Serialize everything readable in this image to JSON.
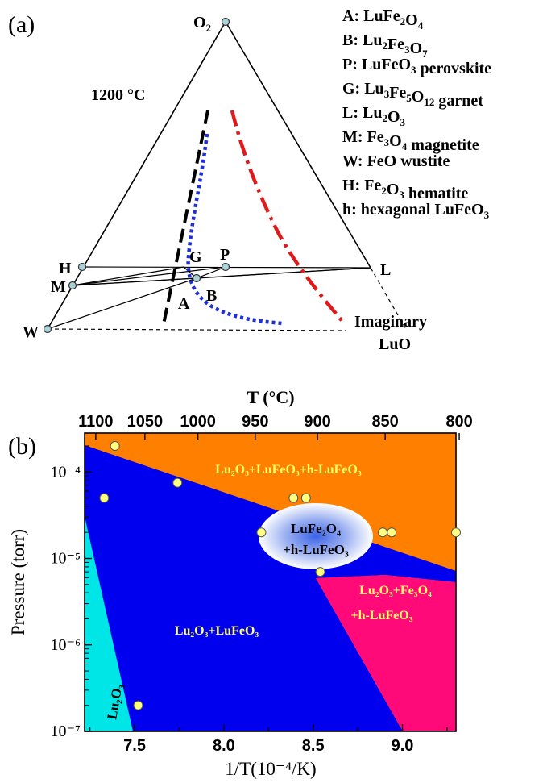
{
  "panel_a": {
    "panel_label": "(a)",
    "temperature_label": "1200 °C",
    "vertices": {
      "O2": "O",
      "O2_sub": "2",
      "H": "H",
      "M": "M",
      "W": "W",
      "G": "G",
      "P": "P",
      "L": "L",
      "A": "A",
      "B": "B",
      "imaginary_line1": "Imaginary",
      "imaginary_line2": "LuO"
    },
    "legend": [
      {
        "key": "A:",
        "parts": [
          [
            "Lu",
            ""
          ],
          [
            "Fe",
            "2"
          ],
          [
            "O",
            "4"
          ]
        ],
        "suffix": ""
      },
      {
        "key": "B:",
        "parts": [
          [
            "Lu",
            "2"
          ],
          [
            "Fe",
            "3"
          ],
          [
            "O",
            "7"
          ]
        ],
        "suffix": ""
      },
      {
        "key": "P:",
        "parts": [
          [
            "Lu",
            ""
          ],
          [
            "Fe",
            ""
          ],
          [
            "O",
            "3"
          ]
        ],
        "suffix": " perovskite"
      },
      {
        "key": "G:",
        "parts": [
          [
            "Lu",
            "3"
          ],
          [
            "Fe",
            "5"
          ],
          [
            "O",
            "12"
          ]
        ],
        "suffix": " garnet"
      },
      {
        "key": "L:",
        "parts": [
          [
            "Lu",
            "2"
          ],
          [
            "O",
            "3"
          ]
        ],
        "suffix": ""
      },
      {
        "key": "M:",
        "parts": [
          [
            "Fe",
            "3"
          ],
          [
            "O",
            "4"
          ]
        ],
        "suffix": " magnetite"
      },
      {
        "key": "W:",
        "parts": [
          [
            "FeO",
            ""
          ]
        ],
        "suffix": " wustite"
      },
      {
        "key": "H:",
        "parts": [
          [
            "Fe",
            "2"
          ],
          [
            "O",
            "3"
          ]
        ],
        "suffix": " hematite"
      },
      {
        "key": "h:",
        "parts": [
          [
            "hexagonal LuFeO",
            "3"
          ]
        ],
        "suffix": ""
      }
    ],
    "colors": {
      "black_dash": "#000000",
      "blue_dot": "#1f2fd6",
      "red_dashdot": "#e0191b",
      "marker": "#a9d3d6"
    }
  },
  "chart_data": {
    "type": "area",
    "panel_label": "(b)",
    "xlabel": "1/T(10⁻⁴/K)",
    "x2label": "T (°C)",
    "ylabel": "Pressure (torr)",
    "xlim": [
      7.22,
      9.3
    ],
    "ylim_log10": [
      -7,
      -3.55
    ],
    "y_scale": "log",
    "xticks": [
      7.5,
      8.0,
      8.5,
      9.0
    ],
    "xtick_labels": [
      "7.5",
      "8.0",
      "8.5",
      "9.0"
    ],
    "yticks_log10": [
      -7,
      -6,
      -5,
      -4
    ],
    "ytick_labels": [
      "10⁻⁷",
      "10⁻⁶",
      "10⁻⁵",
      "10⁻⁴"
    ],
    "top_ticks_C": [
      1100,
      1050,
      1000,
      950,
      900,
      850,
      800
    ],
    "top_tick_labels": [
      "1100",
      "1050",
      "1000",
      "950",
      "900",
      "850",
      "800"
    ],
    "regions": [
      {
        "label": "Lu₂O₃+LuFeO₃+h-LuFeO₃",
        "color": "#ff7f00"
      },
      {
        "label": "Lu₂O₃+LuFeO₃",
        "color": "#0000ee"
      },
      {
        "label": "Lu₂O₃",
        "color": "#00e5e5"
      },
      {
        "label_line1": "Lu₂O₃+Fe₃O₄",
        "label_line2": "+h-LuFeO₃",
        "color": "#ff0a78"
      },
      {
        "label_line1": "LuFe₂O₄",
        "label_line2": "+h-LuFeO₃",
        "color": "#3b63e6"
      }
    ],
    "points": [
      {
        "x": 7.39,
        "p": 0.0002
      },
      {
        "x": 7.74,
        "p": 7.5e-05
      },
      {
        "x": 7.33,
        "p": 5e-05
      },
      {
        "x": 8.39,
        "p": 5e-05
      },
      {
        "x": 8.46,
        "p": 5e-05
      },
      {
        "x": 8.21,
        "p": 2e-05
      },
      {
        "x": 8.89,
        "p": 2e-05
      },
      {
        "x": 8.94,
        "p": 2e-05
      },
      {
        "x": 9.3,
        "p": 2e-05
      },
      {
        "x": 8.54,
        "p": 7e-06
      },
      {
        "x": 7.52,
        "p": 2e-07
      }
    ]
  }
}
